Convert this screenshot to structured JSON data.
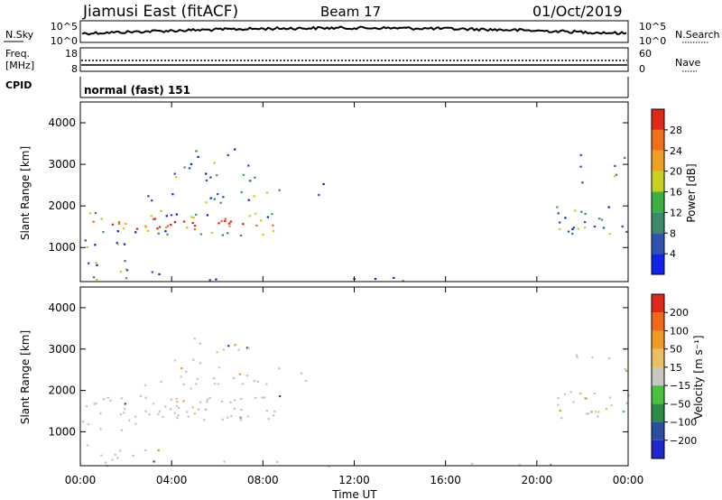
{
  "header": {
    "station": "Jiamusi East (fitACF)",
    "beam": "Beam 17",
    "date": "01/Oct/2019"
  },
  "noise_panel": {
    "left_label": "N.Sky",
    "right_label": "N.Search",
    "ticks": [
      "10^5",
      "10^0"
    ],
    "right_ticks": [
      "10^5",
      "10^0"
    ]
  },
  "freq_panel": {
    "left_label_1": "Freq.",
    "left_label_2": "[MHz]",
    "left_ticks": [
      "18",
      "8"
    ],
    "right_ticks": [
      "60",
      "0"
    ],
    "right_label": "Nave"
  },
  "cpid": {
    "label": "CPID",
    "mode": "normal (fast) 151"
  },
  "chart_data": [
    {
      "type": "heatmap",
      "name": "power",
      "ylabel": "Slant Range [km]",
      "ylim": [
        180,
        4500
      ],
      "yticks": [
        "1000",
        "2000",
        "3000",
        "4000"
      ],
      "colorbar_title": "Power [dB]",
      "colorbar_labels": [
        "4",
        "8",
        "12",
        "16",
        "20",
        "24",
        "28"
      ],
      "colorbar_colors": [
        "#1024e8",
        "#2f54b0",
        "#3a8a6a",
        "#3cb043",
        "#c8d020",
        "#f0a020",
        "#f07018",
        "#e02818"
      ]
    },
    {
      "type": "heatmap",
      "name": "velocity",
      "ylabel": "Slant Range [km]",
      "ylim": [
        180,
        4500
      ],
      "yticks": [
        "1000",
        "2000",
        "3000",
        "4000"
      ],
      "colorbar_title": "Velocity [m s⁻¹]",
      "colorbar_labels": [
        "200",
        "100",
        "50",
        "15",
        "−15",
        "−50",
        "−100",
        "−200"
      ],
      "colorbar_colors": [
        "#1c28c8",
        "#2a4fa0",
        "#2e8a48",
        "#48c040",
        "#c8c8c0",
        "#e8c060",
        "#f09a20",
        "#f06818",
        "#e02818"
      ]
    }
  ],
  "time_axis": {
    "ticks": [
      "00:00",
      "04:00",
      "08:00",
      "12:00",
      "16:00",
      "20:00",
      "00:00"
    ],
    "label": "Time UT"
  }
}
